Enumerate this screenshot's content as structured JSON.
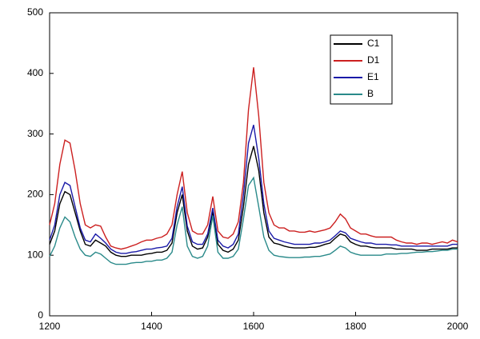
{
  "chart_data": {
    "type": "line",
    "x": [
      1200,
      1210,
      1220,
      1230,
      1240,
      1250,
      1260,
      1270,
      1280,
      1290,
      1300,
      1310,
      1320,
      1330,
      1340,
      1350,
      1360,
      1370,
      1380,
      1390,
      1400,
      1410,
      1420,
      1430,
      1440,
      1450,
      1460,
      1470,
      1480,
      1490,
      1500,
      1510,
      1520,
      1530,
      1540,
      1550,
      1560,
      1570,
      1580,
      1590,
      1600,
      1610,
      1620,
      1630,
      1640,
      1650,
      1660,
      1670,
      1680,
      1690,
      1700,
      1710,
      1720,
      1730,
      1740,
      1750,
      1760,
      1770,
      1780,
      1790,
      1800,
      1810,
      1820,
      1830,
      1840,
      1850,
      1860,
      1870,
      1880,
      1890,
      1900,
      1910,
      1920,
      1930,
      1940,
      1950,
      1960,
      1970,
      1980,
      1990,
      2000
    ],
    "series": [
      {
        "name": "C1",
        "color": "#000000",
        "values": [
          118,
          140,
          185,
          205,
          200,
          170,
          140,
          118,
          115,
          125,
          120,
          115,
          105,
          100,
          98,
          98,
          100,
          100,
          100,
          102,
          103,
          105,
          105,
          108,
          120,
          170,
          200,
          140,
          115,
          110,
          112,
          130,
          172,
          118,
          108,
          105,
          110,
          125,
          180,
          250,
          280,
          240,
          170,
          130,
          120,
          118,
          115,
          113,
          112,
          112,
          112,
          113,
          113,
          115,
          118,
          120,
          128,
          135,
          132,
          122,
          118,
          115,
          115,
          113,
          112,
          112,
          112,
          112,
          110,
          110,
          110,
          110,
          108,
          108,
          108,
          110,
          110,
          110,
          110,
          112,
          112
        ]
      },
      {
        "name": "D1",
        "color": "#cc2020",
        "values": [
          150,
          185,
          250,
          290,
          285,
          240,
          185,
          150,
          145,
          150,
          148,
          130,
          115,
          112,
          110,
          112,
          115,
          118,
          122,
          125,
          125,
          128,
          130,
          135,
          150,
          200,
          238,
          170,
          140,
          135,
          135,
          150,
          197,
          140,
          130,
          128,
          135,
          155,
          220,
          340,
          410,
          330,
          220,
          170,
          150,
          145,
          145,
          140,
          140,
          138,
          138,
          140,
          138,
          140,
          142,
          145,
          155,
          168,
          160,
          145,
          140,
          135,
          135,
          132,
          130,
          130,
          130,
          130,
          125,
          122,
          120,
          120,
          118,
          120,
          120,
          118,
          120,
          122,
          120,
          125,
          122
        ]
      },
      {
        "name": "E1",
        "color": "#1a1aa8",
        "values": [
          125,
          150,
          200,
          220,
          215,
          180,
          145,
          125,
          122,
          135,
          128,
          120,
          110,
          105,
          103,
          103,
          105,
          106,
          108,
          110,
          110,
          112,
          113,
          115,
          128,
          180,
          213,
          148,
          122,
          118,
          118,
          135,
          178,
          125,
          115,
          112,
          118,
          135,
          200,
          285,
          315,
          260,
          185,
          140,
          128,
          125,
          122,
          120,
          118,
          118,
          118,
          118,
          120,
          120,
          122,
          125,
          132,
          140,
          137,
          128,
          125,
          122,
          120,
          120,
          118,
          118,
          118,
          117,
          117,
          115,
          115,
          115,
          115,
          115,
          115,
          115,
          115,
          115,
          115,
          118,
          118
        ]
      },
      {
        "name": "B",
        "color": "#2a8a8a",
        "values": [
          98,
          115,
          145,
          163,
          155,
          130,
          110,
          100,
          98,
          105,
          102,
          95,
          88,
          85,
          85,
          85,
          87,
          88,
          88,
          90,
          90,
          92,
          92,
          95,
          105,
          150,
          180,
          115,
          98,
          95,
          98,
          115,
          165,
          105,
          95,
          95,
          98,
          110,
          160,
          215,
          228,
          180,
          130,
          108,
          100,
          98,
          97,
          96,
          96,
          96,
          97,
          97,
          98,
          98,
          100,
          102,
          108,
          115,
          112,
          105,
          102,
          100,
          100,
          100,
          100,
          100,
          102,
          102,
          102,
          103,
          103,
          104,
          105,
          105,
          106,
          106,
          107,
          108,
          108,
          110,
          110
        ]
      }
    ],
    "xlim": [
      1200,
      2000
    ],
    "xticks": [
      1200,
      1400,
      1600,
      1800,
      2000
    ],
    "ylim": [
      0,
      500
    ],
    "yticks": [
      0,
      100,
      200,
      300,
      400,
      500
    ],
    "grid": false,
    "legend": "upper right"
  }
}
